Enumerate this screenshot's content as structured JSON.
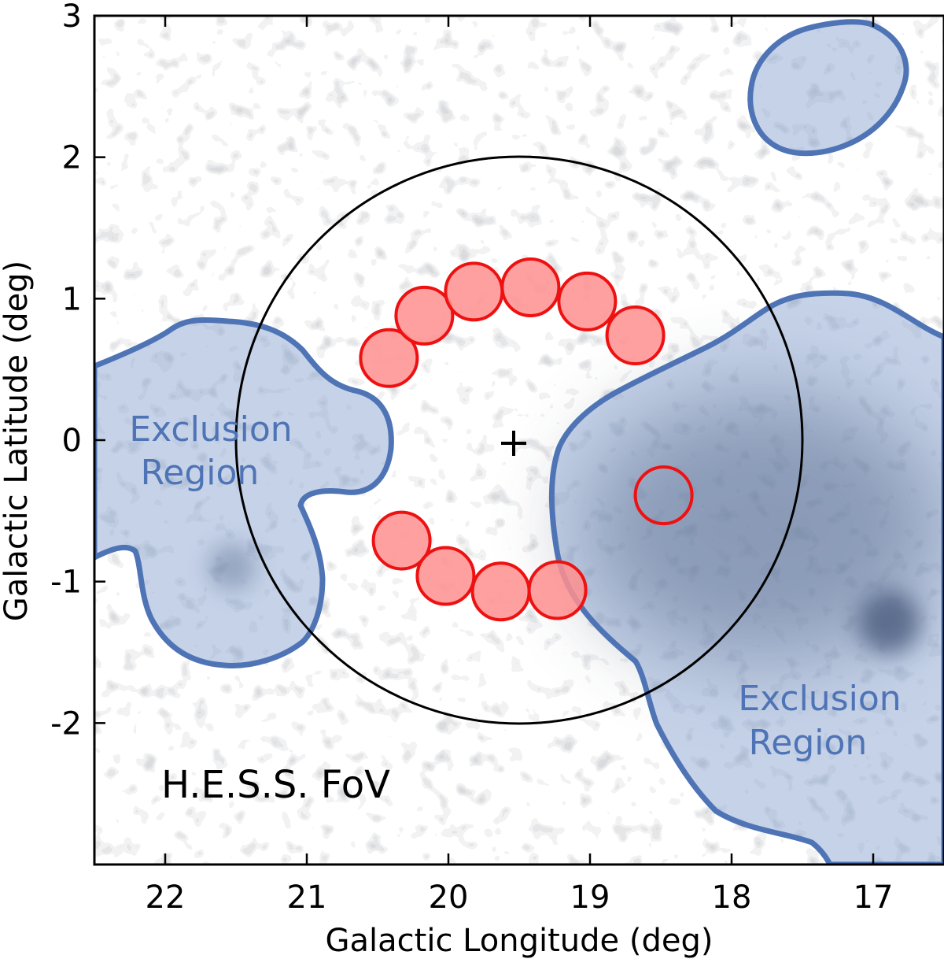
{
  "chart_data": {
    "type": "sky-map",
    "xlabel": "Galactic Longitude (deg)",
    "ylabel": "Galactic Latitude (deg)",
    "xlim": [
      22.5,
      16.5
    ],
    "ylim": [
      -3.0,
      3.0
    ],
    "x_ticks": [
      22,
      21,
      20,
      19,
      18,
      17
    ],
    "y_ticks": [
      3,
      2,
      1,
      0,
      -1,
      -2
    ],
    "fov_label": "H.E.S.S. FoV",
    "fov": {
      "center_l": 19.5,
      "center_b": 0.0,
      "radius_deg": 2.0
    },
    "pointing_marker": {
      "l": 19.5,
      "b": 0.0,
      "symbol": "+"
    },
    "exclusion_label_left": [
      "Exclusion",
      "Region"
    ],
    "exclusion_label_right": [
      "Exclusion",
      "Region"
    ],
    "background_regions": [
      {
        "l": 20.42,
        "b": 0.58
      },
      {
        "l": 20.17,
        "b": 0.88
      },
      {
        "l": 19.82,
        "b": 1.05
      },
      {
        "l": 19.42,
        "b": 1.08
      },
      {
        "l": 19.02,
        "b": 0.98
      },
      {
        "l": 18.68,
        "b": 0.74
      },
      {
        "l": 20.33,
        "b": -0.71
      },
      {
        "l": 20.02,
        "b": -0.96
      },
      {
        "l": 19.63,
        "b": -1.07
      },
      {
        "l": 19.23,
        "b": -1.06
      }
    ],
    "on_region": {
      "l": 18.48,
      "b": -0.39
    },
    "region_radius_deg": 0.2,
    "colors": {
      "exclusion_fill": "#7f9ccd",
      "exclusion_edge": "#4f74b5",
      "background_region_fill": "#ff8f8f",
      "region_edge": "#ee1111",
      "fov_circle": "#000000",
      "label_blue": "#4f74b5"
    }
  }
}
